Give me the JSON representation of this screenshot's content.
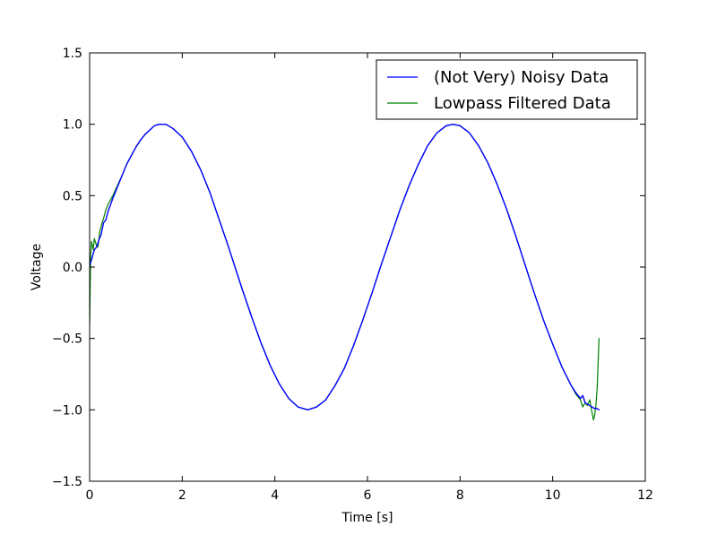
{
  "chart_data": {
    "type": "line",
    "title": "",
    "xlabel": "Time [s]",
    "ylabel": "Voltage",
    "xlim": [
      0,
      12
    ],
    "ylim": [
      -1.5,
      1.5
    ],
    "xticks": [
      0,
      2,
      4,
      6,
      8,
      10,
      12
    ],
    "xtick_labels": [
      "0",
      "2",
      "4",
      "6",
      "8",
      "10",
      "12"
    ],
    "yticks": [
      -1.5,
      -1.0,
      -0.5,
      0.0,
      0.5,
      1.0,
      1.5
    ],
    "ytick_labels": [
      "−1.5",
      "−1.0",
      "−0.5",
      "0.0",
      "0.5",
      "1.0",
      "1.5"
    ],
    "grid": false,
    "legend_position": "top-right",
    "series": [
      {
        "name": "(Not Very) Noisy Data",
        "color": "#0000ff",
        "x": [
          0.0,
          0.05,
          0.1,
          0.15,
          0.2,
          0.25,
          0.3,
          0.35,
          0.4,
          0.5,
          0.6,
          0.7,
          0.8,
          0.9,
          1.0,
          1.1,
          1.2,
          1.3,
          1.4,
          1.5,
          1.57,
          1.65,
          1.8,
          2.0,
          2.2,
          2.4,
          2.6,
          2.8,
          3.0,
          3.14,
          3.3,
          3.5,
          3.7,
          3.9,
          4.1,
          4.3,
          4.5,
          4.71,
          4.9,
          5.1,
          5.3,
          5.5,
          5.7,
          5.9,
          6.1,
          6.28,
          6.5,
          6.7,
          6.9,
          7.1,
          7.3,
          7.5,
          7.7,
          7.85,
          8.0,
          8.2,
          8.4,
          8.6,
          8.8,
          9.0,
          9.2,
          9.42,
          9.6,
          9.8,
          10.0,
          10.2,
          10.4,
          10.5,
          10.6,
          10.65,
          10.7,
          10.75,
          10.8,
          10.85,
          10.9,
          10.95,
          11.0
        ],
        "y": [
          0.01,
          0.06,
          0.12,
          0.14,
          0.19,
          0.23,
          0.31,
          0.33,
          0.39,
          0.48,
          0.56,
          0.64,
          0.72,
          0.78,
          0.84,
          0.89,
          0.93,
          0.96,
          0.99,
          1.0,
          1.0,
          1.0,
          0.97,
          0.91,
          0.81,
          0.68,
          0.52,
          0.33,
          0.14,
          0.0,
          -0.16,
          -0.35,
          -0.53,
          -0.69,
          -0.82,
          -0.92,
          -0.98,
          -1.0,
          -0.98,
          -0.93,
          -0.83,
          -0.71,
          -0.55,
          -0.37,
          -0.18,
          0.0,
          0.21,
          0.4,
          0.57,
          0.72,
          0.85,
          0.94,
          0.99,
          1.0,
          0.99,
          0.94,
          0.85,
          0.73,
          0.58,
          0.41,
          0.22,
          0.0,
          -0.18,
          -0.37,
          -0.54,
          -0.7,
          -0.83,
          -0.88,
          -0.92,
          -0.9,
          -0.95,
          -0.96,
          -0.97,
          -0.98,
          -0.99,
          -0.99,
          -1.0
        ]
      },
      {
        "name": "Lowpass Filtered Data",
        "color": "#008000",
        "x": [
          0.0,
          0.01,
          0.02,
          0.04,
          0.06,
          0.08,
          0.1,
          0.12,
          0.15,
          0.18,
          0.22,
          0.26,
          0.3,
          0.35,
          0.4,
          0.5,
          0.6,
          0.7,
          0.8,
          0.9,
          1.0,
          1.1,
          1.2,
          1.3,
          1.4,
          1.5,
          1.57,
          1.65,
          1.8,
          2.0,
          2.2,
          2.4,
          2.6,
          2.8,
          3.0,
          3.14,
          3.3,
          3.5,
          3.7,
          3.9,
          4.1,
          4.3,
          4.5,
          4.71,
          4.9,
          5.1,
          5.3,
          5.5,
          5.7,
          5.9,
          6.1,
          6.28,
          6.5,
          6.7,
          6.9,
          7.1,
          7.3,
          7.5,
          7.7,
          7.85,
          8.0,
          8.2,
          8.4,
          8.6,
          8.8,
          9.0,
          9.2,
          9.42,
          9.6,
          9.8,
          10.0,
          10.2,
          10.4,
          10.5,
          10.6,
          10.65,
          10.7,
          10.75,
          10.8,
          10.85,
          10.88,
          10.9,
          10.93,
          10.96,
          10.98,
          11.0
        ],
        "y": [
          -0.4,
          -0.2,
          0.05,
          0.18,
          0.15,
          0.12,
          0.2,
          0.18,
          0.15,
          0.14,
          0.25,
          0.3,
          0.34,
          0.4,
          0.44,
          0.5,
          0.57,
          0.64,
          0.72,
          0.78,
          0.84,
          0.89,
          0.93,
          0.96,
          0.99,
          1.0,
          1.0,
          1.0,
          0.97,
          0.91,
          0.81,
          0.68,
          0.52,
          0.33,
          0.14,
          0.0,
          -0.16,
          -0.35,
          -0.53,
          -0.69,
          -0.82,
          -0.92,
          -0.98,
          -1.0,
          -0.98,
          -0.93,
          -0.83,
          -0.71,
          -0.55,
          -0.37,
          -0.18,
          0.0,
          0.21,
          0.4,
          0.57,
          0.72,
          0.85,
          0.94,
          0.99,
          1.0,
          0.99,
          0.94,
          0.85,
          0.73,
          0.58,
          0.41,
          0.22,
          0.0,
          -0.18,
          -0.37,
          -0.54,
          -0.7,
          -0.83,
          -0.89,
          -0.93,
          -0.98,
          -0.95,
          -0.97,
          -0.93,
          -1.02,
          -1.07,
          -1.05,
          -0.98,
          -0.85,
          -0.68,
          -0.5
        ]
      }
    ]
  }
}
